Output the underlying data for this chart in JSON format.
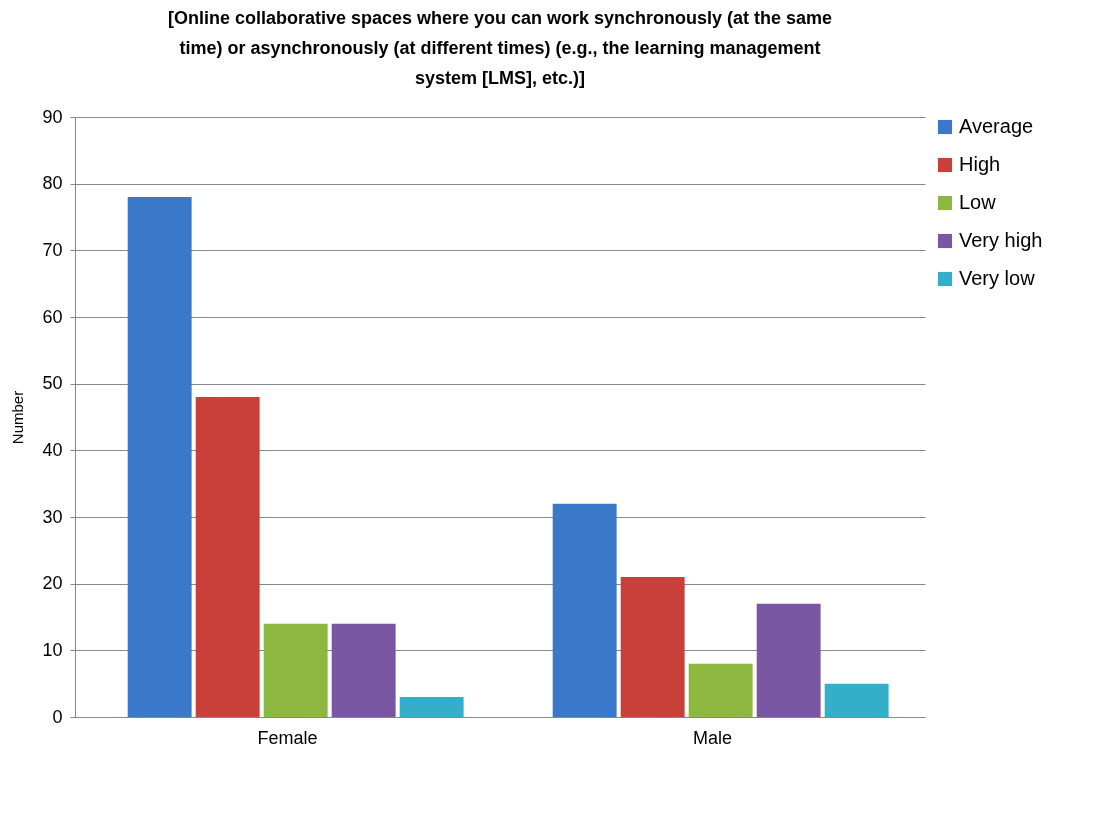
{
  "chart_data": {
    "type": "bar",
    "title": "[Online collaborative spaces where you can work synchronously (at the same time) or asynchronously (at different times) (e.g., the learning management system [LMS], etc.)]",
    "ylabel": "Number",
    "categories": [
      "Female",
      "Male"
    ],
    "series": [
      {
        "name": "Average",
        "color": "#3a78c9",
        "values": [
          78,
          32
        ]
      },
      {
        "name": "High",
        "color": "#c9403b",
        "values": [
          48,
          21
        ]
      },
      {
        "name": "Low",
        "color": "#8db83f",
        "values": [
          14,
          8
        ]
      },
      {
        "name": "Very high",
        "color": "#7a57a3",
        "values": [
          14,
          17
        ]
      },
      {
        "name": "Very low",
        "color": "#35aec9",
        "values": [
          3,
          5
        ]
      }
    ],
    "ylim": [
      0,
      90
    ],
    "yticks": [
      0,
      10,
      20,
      30,
      40,
      50,
      60,
      70,
      80,
      90
    ],
    "grid": "y",
    "legend": "right"
  }
}
